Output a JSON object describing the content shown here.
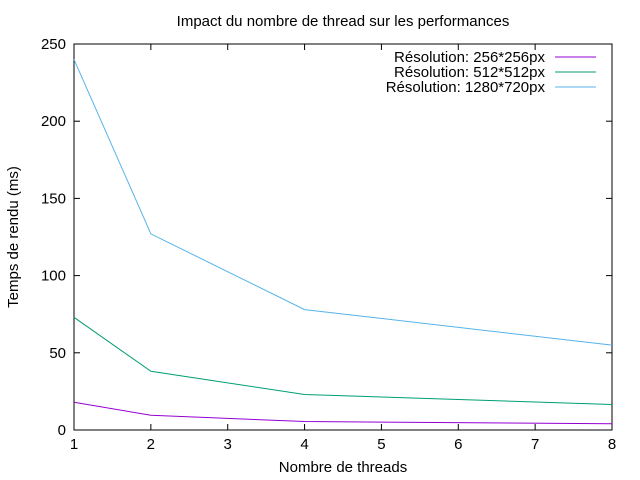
{
  "chart_data": {
    "type": "line",
    "title": "Impact du nombre de thread sur les performances",
    "xlabel": "Nombre de threads",
    "ylabel": "Temps de rendu (ms)",
    "xlim": [
      1,
      8
    ],
    "ylim": [
      0,
      250
    ],
    "xticks": [
      1,
      2,
      3,
      4,
      5,
      6,
      7,
      8
    ],
    "yticks": [
      0,
      50,
      100,
      150,
      200,
      250
    ],
    "grid": false,
    "legend_position": "top-right",
    "x": [
      1,
      2,
      4,
      8
    ],
    "series": [
      {
        "name": "Résolution: 256*256px",
        "color": "#9400d3",
        "values": [
          18,
          9.5,
          5.5,
          4
        ]
      },
      {
        "name": "Résolution: 512*512px",
        "color": "#009e73",
        "values": [
          73,
          38,
          23,
          16.5
        ]
      },
      {
        "name": "Résolution: 1280*720px",
        "color": "#56b4e9",
        "values": [
          240,
          127,
          78,
          55
        ]
      }
    ]
  }
}
